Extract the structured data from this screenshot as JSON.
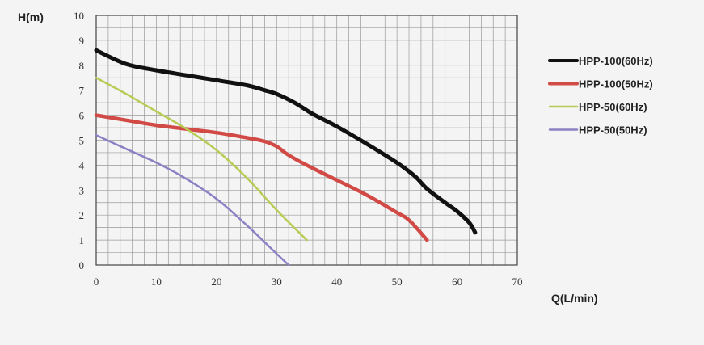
{
  "chart_data": {
    "type": "line",
    "title": "",
    "xlabel": "Q(L/min)",
    "ylabel": "H(m)",
    "xlim": [
      0,
      70
    ],
    "ylim": [
      0,
      10
    ],
    "x_ticks": [
      "0",
      "10",
      "20",
      "30",
      "40",
      "50",
      "60",
      "70"
    ],
    "y_ticks": [
      "0",
      "1",
      "2",
      "3",
      "4",
      "5",
      "6",
      "7",
      "8",
      "9",
      "10"
    ],
    "grid": true,
    "legend_position": "right",
    "series": [
      {
        "name": "HPP-100(60Hz)",
        "color": "#111111",
        "points": [
          [
            0,
            8.6
          ],
          [
            5,
            8.05
          ],
          [
            10,
            7.8
          ],
          [
            15,
            7.6
          ],
          [
            20,
            7.4
          ],
          [
            25,
            7.2
          ],
          [
            28,
            7.0
          ],
          [
            30,
            6.85
          ],
          [
            33,
            6.5
          ],
          [
            36,
            6.05
          ],
          [
            40,
            5.55
          ],
          [
            45,
            4.85
          ],
          [
            50,
            4.1
          ],
          [
            53,
            3.55
          ],
          [
            55,
            3.05
          ],
          [
            58,
            2.5
          ],
          [
            60,
            2.15
          ],
          [
            62,
            1.7
          ],
          [
            63,
            1.3
          ]
        ]
      },
      {
        "name": "HPP-100(50Hz)",
        "color": "#d24a45",
        "points": [
          [
            0,
            6.0
          ],
          [
            5,
            5.8
          ],
          [
            10,
            5.6
          ],
          [
            15,
            5.45
          ],
          [
            20,
            5.3
          ],
          [
            25,
            5.1
          ],
          [
            28,
            4.95
          ],
          [
            30,
            4.75
          ],
          [
            32,
            4.4
          ],
          [
            35,
            4.0
          ],
          [
            40,
            3.4
          ],
          [
            45,
            2.8
          ],
          [
            50,
            2.1
          ],
          [
            52,
            1.8
          ],
          [
            55,
            1.0
          ]
        ]
      },
      {
        "name": "HPP-50(60Hz)",
        "color": "#b6cc55",
        "points": [
          [
            0,
            7.5
          ],
          [
            5,
            6.85
          ],
          [
            10,
            6.15
          ],
          [
            15,
            5.45
          ],
          [
            20,
            4.6
          ],
          [
            25,
            3.5
          ],
          [
            30,
            2.2
          ],
          [
            35,
            1.0
          ]
        ]
      },
      {
        "name": "HPP-50(50Hz)",
        "color": "#8a82c4",
        "points": [
          [
            0,
            5.2
          ],
          [
            5,
            4.65
          ],
          [
            10,
            4.1
          ],
          [
            15,
            3.45
          ],
          [
            20,
            2.65
          ],
          [
            25,
            1.6
          ],
          [
            30,
            0.45
          ],
          [
            32,
            0.0
          ]
        ]
      }
    ]
  }
}
